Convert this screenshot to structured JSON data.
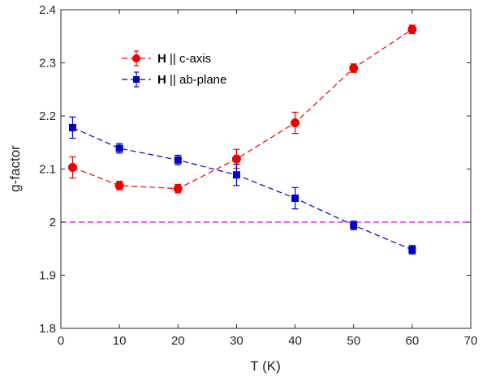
{
  "chart_data": {
    "type": "scatter",
    "xlabel": "T (K)",
    "ylabel": "g-factor",
    "xlim": [
      0,
      70
    ],
    "ylim": [
      1.8,
      2.4
    ],
    "xticks": [
      "0",
      "10",
      "20",
      "30",
      "40",
      "50",
      "60",
      "70"
    ],
    "yticks": [
      "1.8",
      "1.9",
      "2",
      "2.1",
      "2.2",
      "2.3",
      "2.4"
    ],
    "grid": false,
    "legend_position": "top-left",
    "series": [
      {
        "legend_bold": "H",
        "legend_rest": " || c-axis",
        "color": "#ee0000",
        "marker": "circle",
        "line": "dashed",
        "x": [
          2,
          10,
          20,
          30,
          40,
          50,
          60
        ],
        "y": [
          2.103,
          2.069,
          2.063,
          2.119,
          2.187,
          2.29,
          2.363
        ],
        "err": [
          0.02,
          0.008,
          0.008,
          0.018,
          0.02,
          0.008,
          0.008
        ]
      },
      {
        "legend_bold": "H",
        "legend_rest": " || ab-plane",
        "color": "#0000cc",
        "marker": "square",
        "line": "dashed",
        "x": [
          2,
          10,
          20,
          30,
          40,
          50,
          60
        ],
        "y": [
          2.178,
          2.139,
          2.117,
          2.089,
          2.045,
          1.994,
          1.948
        ],
        "err": [
          0.02,
          0.009,
          0.009,
          0.02,
          0.02,
          0.008,
          0.008
        ]
      }
    ],
    "reference_line": {
      "y": 2.0,
      "color": "#ee00ee",
      "style": "dashed"
    }
  }
}
